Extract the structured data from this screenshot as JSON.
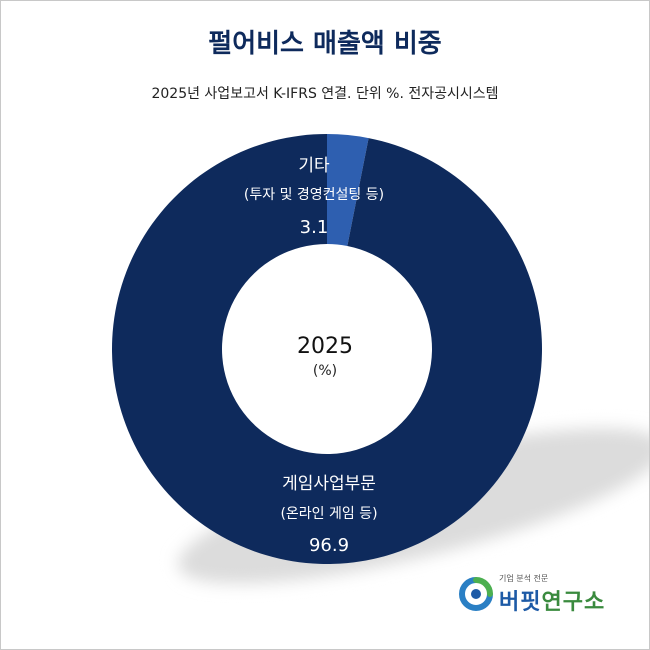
{
  "title": "펄어비스 매출액 비중",
  "subtitle": "2025년 사업보고서 K-IFRS 연결. 단위 %. 전자공시시스템",
  "center": {
    "year": "2025",
    "unit": "(%)"
  },
  "colors": {
    "title": "#0e2a5c",
    "major_slice": "#0e2a5c",
    "minor_slice": "#2e5fb0",
    "shadow": "#dcdcdc",
    "label_text": "#ffffff"
  },
  "chart_data": {
    "type": "pie",
    "variant": "donut",
    "title": "펄어비스 매출액 비중",
    "subtitle": "2025년 사업보고서 K-IFRS 연결. 단위 %. 전자공시시스템",
    "categories": [
      "기타",
      "게임사업부문"
    ],
    "sublabels": [
      "(투자 및 경영컨설팅 등)",
      "(온라인 게임 등)"
    ],
    "values": [
      3.1,
      96.9
    ],
    "value_labels": [
      "3.1",
      "96.9"
    ],
    "slice_colors": [
      "#2e5fb0",
      "#0e2a5c"
    ],
    "start_angle": "12 o'clock, clockwise",
    "legend": "none"
  },
  "logo": {
    "tagline": "기업 분석 전문",
    "name_part1": "버핏",
    "name_part2": "연구소"
  }
}
